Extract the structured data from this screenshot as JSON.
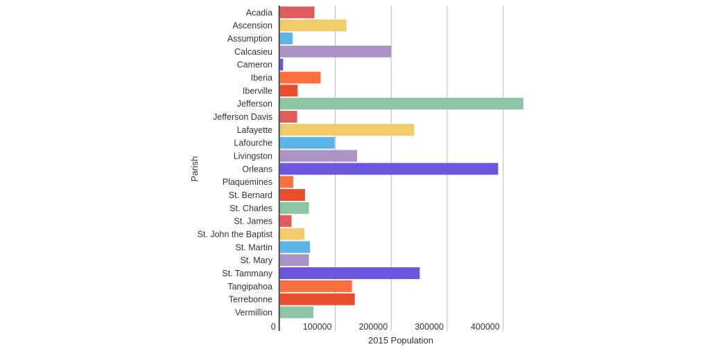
{
  "chart_data": {
    "type": "bar",
    "orientation": "horizontal",
    "xlabel": "2015 Population",
    "ylabel": "Parish",
    "xlim": [
      0,
      450000
    ],
    "xticks": [
      "0",
      "100000",
      "200000",
      "300000",
      "400000"
    ],
    "grid": true,
    "categories": [
      "Acadia",
      "Ascension",
      "Assumption",
      "Calcasieu",
      "Cameron",
      "Iberia",
      "Iberville",
      "Jefferson",
      "Jefferson Davis",
      "Lafayette",
      "Lafourche",
      "Livingston",
      "Orleans",
      "Plaquemines",
      "St. Bernard",
      "St. Charles",
      "St. James",
      "St. John the Baptist",
      "St. Martin",
      "St. Mary",
      "St. Tammany",
      "Tangipahoa",
      "Terrebonne",
      "Vermillion"
    ],
    "values": [
      63000,
      120000,
      24000,
      200000,
      7000,
      74000,
      33000,
      436000,
      32000,
      241000,
      99000,
      139000,
      391000,
      25000,
      46000,
      53000,
      22000,
      45000,
      55000,
      53000,
      251000,
      130000,
      135000,
      61000
    ],
    "colors": [
      "#e05b5b",
      "#f0cc6b",
      "#5bb5e6",
      "#ab93c8",
      "#6d55dd",
      "#ff6e3d",
      "#e84d2c",
      "#8ec5a5"
    ]
  }
}
